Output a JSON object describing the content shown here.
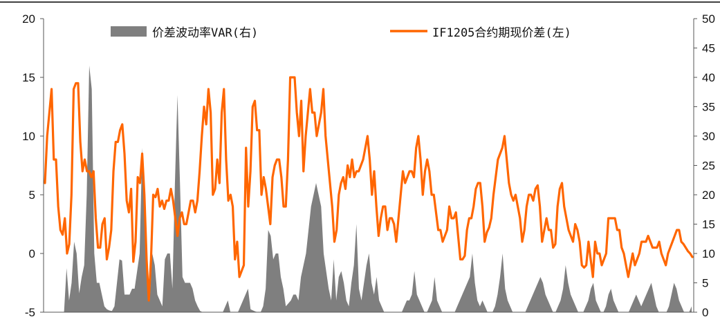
{
  "chart_data": {
    "type": "line",
    "title": "",
    "xlabel": "",
    "ylabel_left": "",
    "ylabel_right": "",
    "grid": false,
    "legend_position": "top",
    "left_axis": {
      "ylim": [
        -5,
        20
      ],
      "ticks": [
        "-5",
        "0",
        "5",
        "10",
        "15",
        "20"
      ]
    },
    "right_axis": {
      "ylim": [
        0,
        50
      ],
      "ticks": [
        "0",
        "5",
        "10",
        "15",
        "20",
        "25",
        "30",
        "35",
        "40",
        "45",
        "50"
      ]
    },
    "series": [
      {
        "name": "价差波动率VAR(右)",
        "type": "area",
        "axis": "right",
        "color": "#7f7f7f",
        "values": [
          0,
          0,
          0,
          0,
          0,
          7.5,
          2,
          5,
          12,
          10,
          3.2,
          6,
          8,
          20,
          42,
          38,
          10,
          5,
          5,
          3,
          1,
          0.5,
          0.3,
          0.2,
          1,
          5,
          9,
          8.8,
          3,
          3,
          3,
          4,
          4,
          7,
          10,
          28,
          18,
          5,
          2,
          10,
          8,
          3,
          2,
          1,
          9,
          10,
          10,
          4,
          22,
          37,
          22,
          6,
          5,
          5,
          5,
          4,
          2,
          1,
          0.2,
          0,
          0,
          0,
          0,
          0,
          0,
          0,
          0,
          0,
          1,
          2,
          0,
          0,
          0,
          0,
          1,
          2,
          3,
          4,
          0.5,
          0.3,
          0.1,
          0,
          0,
          1,
          4,
          14,
          13,
          9,
          10,
          10,
          6,
          4,
          1,
          1.5,
          2,
          3,
          3,
          2,
          6,
          8,
          10,
          14,
          18,
          20,
          22,
          20,
          18,
          10,
          7,
          4,
          2,
          9,
          2,
          6,
          7,
          5,
          2,
          1,
          5,
          8,
          15,
          4,
          2,
          5,
          8,
          10,
          5,
          3,
          6,
          2,
          1,
          0,
          0,
          0,
          0,
          0,
          0,
          0,
          0,
          1,
          2,
          2,
          3,
          7,
          3,
          2,
          1,
          0,
          0,
          1,
          2,
          6,
          2,
          1,
          0,
          0,
          0,
          0,
          0,
          0,
          1,
          2,
          3,
          4,
          5,
          6,
          10,
          5,
          2,
          1,
          2,
          1,
          0,
          0,
          0,
          1,
          3,
          6,
          10,
          4,
          2,
          1,
          0,
          0,
          0,
          0,
          0,
          0,
          1,
          2,
          3,
          4,
          5,
          6,
          5,
          3,
          2,
          1,
          0,
          0,
          1,
          2,
          4,
          8,
          5,
          3,
          2,
          1,
          0,
          0,
          0,
          1,
          2,
          4,
          5,
          2,
          1,
          0,
          0,
          1,
          3,
          4,
          2,
          1,
          0,
          0,
          0,
          0,
          0,
          1,
          2,
          3,
          2,
          1,
          2,
          3,
          4,
          5,
          3,
          1,
          0,
          0,
          0,
          0,
          1,
          3,
          5,
          4,
          2,
          1,
          0,
          0,
          0,
          1
        ]
      },
      {
        "name": "IF1205合约期现价差(左)",
        "type": "line",
        "axis": "left",
        "color": "#ff6600",
        "values": [
          6,
          10,
          12,
          14,
          8,
          8,
          4,
          2,
          1.6,
          3,
          0,
          0.8,
          5,
          14,
          14.5,
          14.5,
          9.5,
          7,
          8,
          7,
          7,
          6.5,
          7,
          3,
          0.5,
          0.5,
          2.5,
          3,
          -0.5,
          0.5,
          2,
          7,
          9.5,
          9.5,
          10.5,
          11,
          8.5,
          4.5,
          3.5,
          5.5,
          -0.7,
          1,
          6.5,
          6,
          8.5,
          5,
          -0.5,
          -4,
          -0.5,
          5,
          4.8,
          5.5,
          4,
          4.5,
          3.8,
          4.5,
          4.5,
          5.5,
          4.5,
          3,
          1.5,
          3,
          3.5,
          2.5,
          2.5,
          3.5,
          4.5,
          4.5,
          3.5,
          4.5,
          7,
          10,
          12.5,
          11,
          14,
          12,
          5,
          5.5,
          8,
          6,
          12,
          14,
          8,
          4.5,
          5,
          4,
          -0.5,
          1,
          -2,
          -1.5,
          -1,
          9,
          4,
          7,
          12.5,
          13,
          10.5,
          10.5,
          5,
          6.5,
          5.5,
          4,
          2.5,
          6.5,
          7.5,
          8,
          8,
          6.5,
          4,
          4,
          8,
          15,
          15,
          15,
          12,
          10,
          13,
          7,
          10,
          12,
          14,
          12,
          12,
          10,
          11,
          12,
          14,
          10,
          8,
          6,
          4,
          1,
          2,
          5,
          6,
          6.5,
          5.5,
          7.5,
          6.5,
          8,
          6.5,
          7,
          7,
          7.5,
          8,
          9,
          10,
          8,
          5,
          7,
          4,
          1.5,
          3,
          4,
          4,
          2,
          3,
          3,
          2.5,
          1,
          3,
          5,
          7,
          6,
          6.5,
          7,
          7,
          6.5,
          9,
          10,
          8,
          5,
          7,
          8,
          7,
          5,
          5,
          3.5,
          2,
          2,
          1,
          1.5,
          2,
          4,
          3,
          3,
          3.5,
          1.5,
          -0.5,
          -0.5,
          -0.2,
          2,
          3,
          3,
          4,
          5.5,
          6,
          6,
          4,
          1,
          1.8,
          2.2,
          3,
          5,
          6.5,
          8,
          8.5,
          9,
          10,
          8,
          6,
          5,
          4.5,
          5,
          4,
          3,
          1,
          2,
          4,
          5,
          5,
          4.5,
          5.5,
          5.8,
          4,
          1,
          2,
          3,
          2,
          2,
          0.5,
          0.8,
          4,
          5.5,
          6,
          4,
          3,
          2,
          1.5,
          1,
          2.5,
          2,
          1,
          -1,
          -1.2,
          -1,
          1,
          -0.5,
          -2,
          1,
          0,
          0,
          -1,
          -0.5,
          0,
          3,
          3,
          3,
          3,
          2,
          2,
          0.5,
          0,
          -1,
          -2,
          -1,
          0,
          -1,
          -0.5,
          0,
          1,
          1,
          1,
          1.5,
          1,
          0.5,
          0.5,
          0.5,
          1,
          0,
          -0.5,
          -1,
          0,
          0.5,
          1,
          1.5,
          2,
          2,
          1,
          0.8,
          0.5,
          0.2,
          0,
          -0.3
        ]
      }
    ]
  }
}
